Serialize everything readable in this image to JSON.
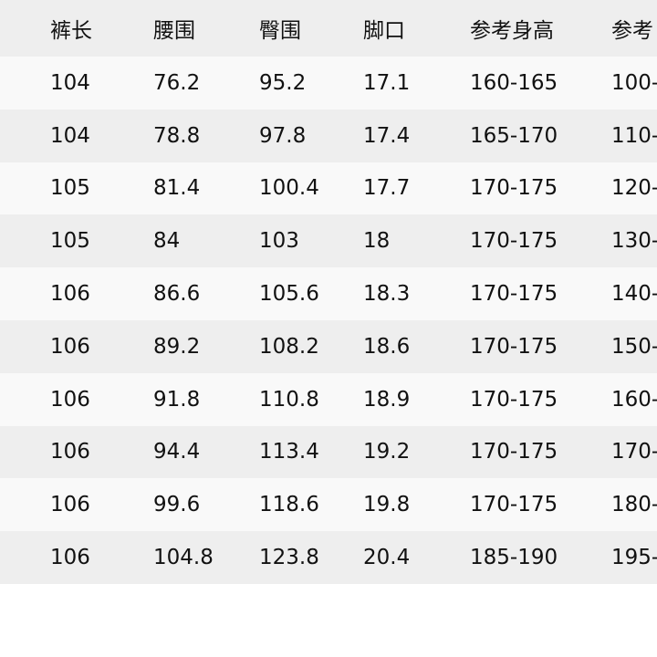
{
  "table": {
    "headers": [
      "裤长",
      "腰围",
      "臀围",
      "脚口",
      "参考身高",
      "参考"
    ],
    "rows": [
      [
        "104",
        "76.2",
        "95.2",
        "17.1",
        "160-165",
        "100-"
      ],
      [
        "104",
        "78.8",
        "97.8",
        "17.4",
        "165-170",
        "110-"
      ],
      [
        "105",
        "81.4",
        "100.4",
        "17.7",
        "170-175",
        "120-"
      ],
      [
        "105",
        "84",
        "103",
        "18",
        "170-175",
        "130-"
      ],
      [
        "106",
        "86.6",
        "105.6",
        "18.3",
        "170-175",
        "140-"
      ],
      [
        "106",
        "89.2",
        "108.2",
        "18.6",
        "170-175",
        "150-"
      ],
      [
        "106",
        "91.8",
        "110.8",
        "18.9",
        "170-175",
        "160-"
      ],
      [
        "106",
        "94.4",
        "113.4",
        "19.2",
        "170-175",
        "170-"
      ],
      [
        "106",
        "99.6",
        "118.6",
        "19.8",
        "170-175",
        "180-"
      ],
      [
        "106",
        "104.8",
        "123.8",
        "20.4",
        "185-190",
        "195-"
      ]
    ]
  }
}
